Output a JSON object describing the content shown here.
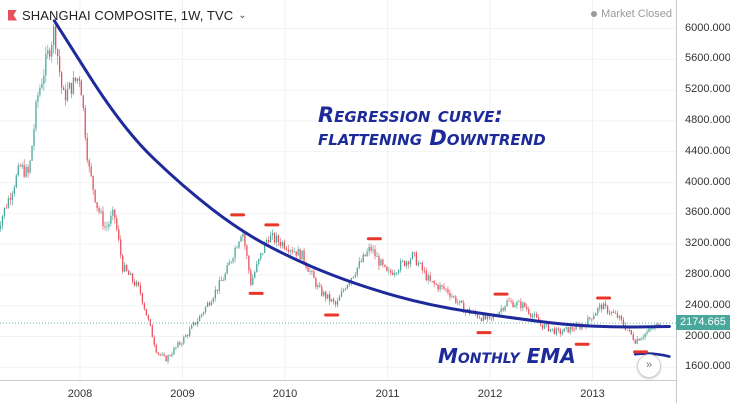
{
  "header": {
    "title": "SHANGHAI COMPOSITE, 1W, TVC",
    "status": "Market Closed",
    "last_price": "2174.665"
  },
  "annotations": {
    "regression_line1": "Regression curve:",
    "regression_line2": "flattening Downtrend",
    "ema": "Monthly EMA"
  },
  "colors": {
    "up": "#4aa79c",
    "down": "#e9505d",
    "regression": "#1e2a9b",
    "markers": "#e8372a",
    "price_tag": "#4aa79c"
  },
  "chart_data": {
    "type": "candlestick",
    "x_ticks": [
      "2008",
      "2009",
      "2010",
      "2011",
      "2012",
      "2013"
    ],
    "y_ticks": [
      "1600.000",
      "2000.000",
      "2400.000",
      "2800.000",
      "3200.000",
      "3600.000",
      "4000.000",
      "4400.000",
      "4800.000",
      "5200.000",
      "5600.000",
      "6000.000"
    ],
    "ylim": [
      1400,
      6200
    ],
    "series_anchors": [
      [
        "2007-03",
        3300
      ],
      [
        "2007-05",
        3900
      ],
      [
        "2007-06",
        4200
      ],
      [
        "2007-07",
        4100
      ],
      [
        "2007-08",
        5100
      ],
      [
        "2007-10",
        6000
      ],
      [
        "2007-11",
        5100
      ],
      [
        "2008-01",
        5400
      ],
      [
        "2008-02",
        4200
      ],
      [
        "2008-03",
        3700
      ],
      [
        "2008-04",
        3400
      ],
      [
        "2008-05",
        3600
      ],
      [
        "2008-06",
        2900
      ],
      [
        "2008-08",
        2600
      ],
      [
        "2008-10",
        1800
      ],
      [
        "2008-11",
        1700
      ],
      [
        "2009-01",
        1950
      ],
      [
        "2009-03",
        2250
      ],
      [
        "2009-06",
        2800
      ],
      [
        "2009-08",
        3400
      ],
      [
        "2009-09",
        2700
      ],
      [
        "2009-11",
        3300
      ],
      [
        "2010-01",
        3200
      ],
      [
        "2010-03",
        3050
      ],
      [
        "2010-05",
        2600
      ],
      [
        "2010-07",
        2400
      ],
      [
        "2010-08",
        2650
      ],
      [
        "2010-11",
        3150
      ],
      [
        "2011-01",
        2800
      ],
      [
        "2011-04",
        3050
      ],
      [
        "2011-06",
        2700
      ],
      [
        "2011-08",
        2600
      ],
      [
        "2011-10",
        2350
      ],
      [
        "2012-01",
        2200
      ],
      [
        "2012-03",
        2450
      ],
      [
        "2012-05",
        2400
      ],
      [
        "2012-07",
        2150
      ],
      [
        "2012-09",
        2050
      ],
      [
        "2012-12",
        2150
      ],
      [
        "2013-02",
        2400
      ],
      [
        "2013-04",
        2250
      ],
      [
        "2013-06",
        1950
      ],
      [
        "2013-08",
        2100
      ],
      [
        "2013-09",
        2174.665
      ]
    ],
    "regression_curve": [
      [
        "2007-10",
        6100
      ],
      [
        "2008-06",
        4700
      ],
      [
        "2009-01",
        3950
      ],
      [
        "2009-08",
        3350
      ],
      [
        "2010-03",
        2950
      ],
      [
        "2010-10",
        2650
      ],
      [
        "2011-06",
        2400
      ],
      [
        "2012-03",
        2250
      ],
      [
        "2012-10",
        2150
      ],
      [
        "2013-04",
        2120
      ],
      [
        "2013-10",
        2130
      ]
    ],
    "marker_points": [
      [
        "2009-07-15",
        3580,
        "top"
      ],
      [
        "2009-09-20",
        2560,
        "bottom"
      ],
      [
        "2009-11-15",
        3450,
        "top"
      ],
      [
        "2010-06-15",
        2280,
        "bottom"
      ],
      [
        "2010-11-15",
        3270,
        "top"
      ],
      [
        "2011-12-10",
        2050,
        "bottom"
      ],
      [
        "2012-02-10",
        2550,
        "top"
      ],
      [
        "2012-11-25",
        1900,
        "bottom"
      ],
      [
        "2013-02-10",
        2500,
        "top"
      ],
      [
        "2013-06-20",
        1800,
        "bottom"
      ]
    ],
    "ema_tail": [
      [
        "2013-06",
        1770
      ],
      [
        "2013-10",
        1740
      ]
    ]
  }
}
